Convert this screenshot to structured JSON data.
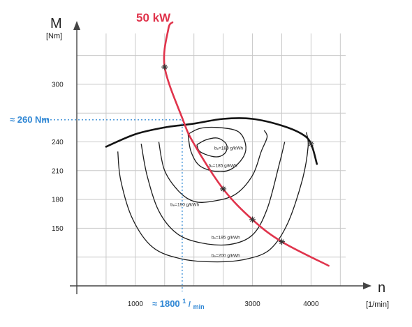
{
  "chart_data": {
    "type": "line",
    "title": "",
    "y_axis": {
      "symbol": "M",
      "unit": "[Nm]",
      "ticks": [
        150,
        180,
        210,
        240,
        300
      ],
      "tick_labels": [
        "150",
        "180",
        "210",
        "240",
        "300"
      ],
      "range": [
        90,
        340
      ]
    },
    "x_axis": {
      "symbol": "n",
      "unit": "[1/min]",
      "ticks": [
        1000,
        3000,
        4000
      ],
      "tick_labels": [
        "1000",
        "3000",
        "4000"
      ],
      "range": [
        0,
        4700
      ]
    },
    "grid": true,
    "full_load_curve": {
      "x": [
        500,
        1000,
        1500,
        2000,
        2500,
        3000,
        3500,
        3850,
        4000,
        4100
      ],
      "y": [
        235,
        248,
        255,
        259,
        264,
        264,
        257,
        248,
        238,
        217
      ]
    },
    "constant_power_curve": {
      "label": "50 kW",
      "x": [
        1500,
        1800,
        2000,
        2500,
        3000,
        3500,
        4300
      ],
      "y": [
        318,
        265,
        238,
        191,
        159,
        136,
        111
      ],
      "markers_x": [
        1500,
        2500,
        3000,
        3500,
        4000
      ]
    },
    "bsfc_contours": [
      {
        "label": "bₑ=180 g/kWh",
        "x": [
          2050,
          2200,
          2400,
          2550,
          2550,
          2450,
          2300,
          2100,
          2050
        ],
        "y": [
          237,
          242,
          244,
          238,
          230,
          225,
          225,
          230,
          237
        ],
        "label_at": [
          2350,
          232
        ]
      },
      {
        "label": "bₑ=185 g/kWh",
        "x": [
          1900,
          2100,
          2400,
          2750,
          2880,
          2850,
          2650,
          2400,
          2100,
          1950,
          1900
        ],
        "y": [
          248,
          254,
          255,
          251,
          238,
          225,
          212,
          209,
          215,
          230,
          248
        ],
        "label_at": [
          2250,
          214
        ]
      },
      {
        "label": "bₑ=190 g/kWh",
        "x": [
          1400,
          1500,
          1750,
          2000,
          2300,
          2700,
          3000,
          3150,
          3250,
          3200
        ],
        "y": [
          240,
          210,
          188,
          178,
          178,
          185,
          205,
          230,
          245,
          252
        ],
        "label_at": [
          1600,
          173
        ]
      },
      {
        "label": "bₑ=195 g/kWh",
        "x": [
          1100,
          1200,
          1400,
          1700,
          2100,
          2600,
          3000,
          3250,
          3450,
          3550
        ],
        "y": [
          238,
          205,
          168,
          145,
          135,
          133,
          143,
          170,
          215,
          240
        ],
        "label_at": [
          2300,
          139
        ]
      },
      {
        "label": "bₑ=200 g/kWh",
        "x": [
          700,
          750,
          950,
          1300,
          1800,
          2400,
          2900,
          3300,
          3600,
          3850,
          3950,
          3920
        ],
        "y": [
          230,
          200,
          160,
          130,
          118,
          115,
          118,
          128,
          155,
          200,
          235,
          250
        ],
        "label_at": [
          2300,
          120
        ]
      }
    ],
    "reference": {
      "torque_label": "≈ 260 Nm",
      "torque_value": 263,
      "speed_label_prefix": "≈ 1800 ",
      "speed_label_num": "1",
      "speed_label_den": "min",
      "speed_value": 1800
    }
  }
}
